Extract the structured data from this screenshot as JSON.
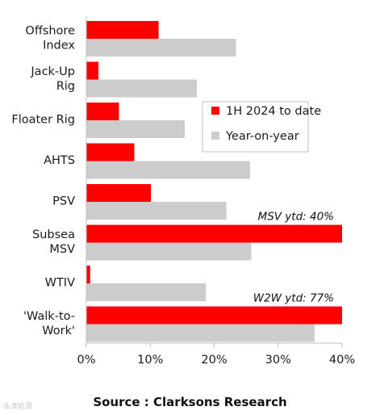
{
  "chart_data": {
    "type": "bar",
    "orientation": "horizontal",
    "categories": [
      [
        "Offshore",
        "Index"
      ],
      [
        "Jack-Up",
        "Rig"
      ],
      [
        "Floater Rig"
      ],
      [
        "AHTS"
      ],
      [
        "PSV"
      ],
      [
        "Subsea",
        "MSV"
      ],
      [
        "WTIV"
      ],
      [
        "'Walk-to-",
        "Work'"
      ]
    ],
    "series": [
      {
        "name": "1H 2024 to date",
        "color": "#ff0000",
        "values": [
          11.3,
          1.9,
          5.1,
          7.5,
          10.1,
          40,
          0.6,
          40
        ]
      },
      {
        "name": "Year-on-year",
        "color": "#cccccc",
        "values": [
          23.4,
          17.3,
          15.4,
          25.6,
          21.9,
          25.8,
          18.7,
          35.7
        ]
      }
    ],
    "xlim": [
      0,
      40
    ],
    "xticks": [
      "0%",
      "10%",
      "20%",
      "30%",
      "40%"
    ],
    "grid": false,
    "legend_position": "right",
    "annotations": [
      {
        "text": "MSV ytd: 40%",
        "category_index": 5
      },
      {
        "text": "W2W ytd: 77%",
        "category_index": 7
      }
    ]
  },
  "source_text": "Source : Clarksons Research",
  "watermark_text": "永澳能源"
}
